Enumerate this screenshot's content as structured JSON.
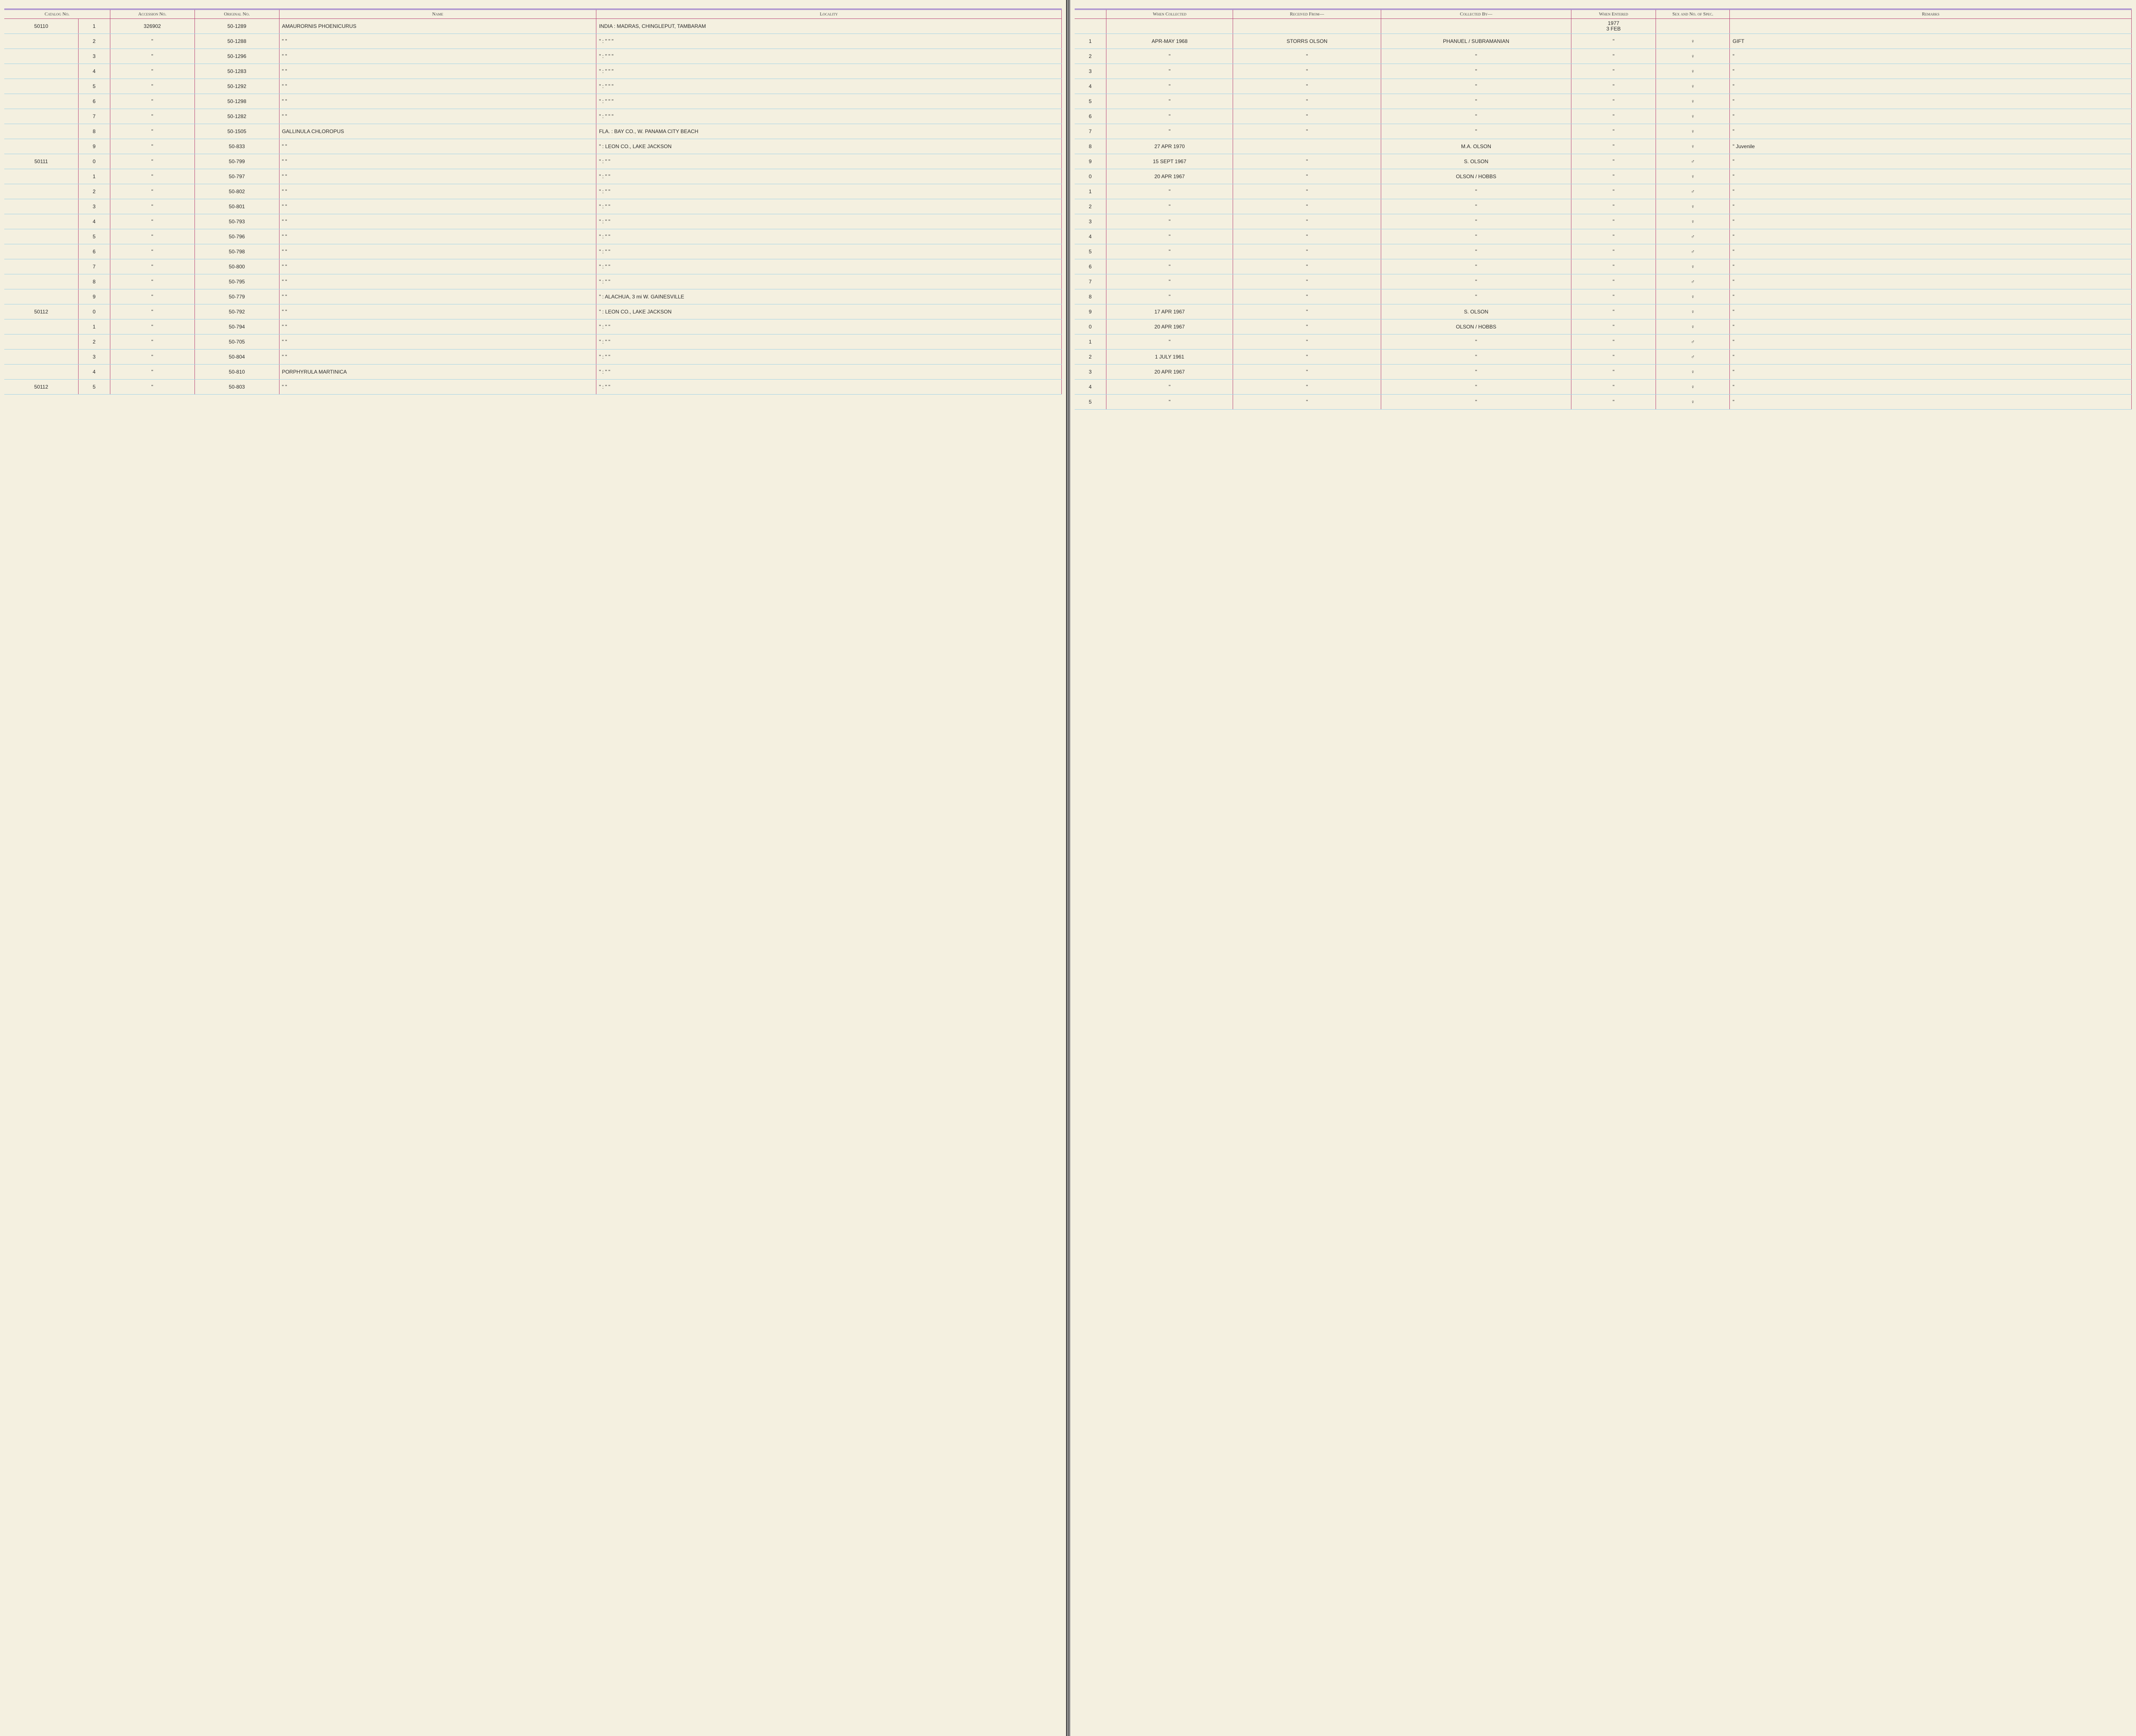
{
  "headers": {
    "left": [
      "Catalog No.",
      "Accession No.",
      "Original No.",
      "Name",
      "Locality"
    ],
    "right": [
      "",
      "When Collected",
      "Received From—",
      "Collected By—",
      "When Entered",
      "Sex and No. of Spec.",
      "Remarks"
    ]
  },
  "date_entered_header": {
    "year": "1977",
    "day": "3 FEB"
  },
  "colors": {
    "paper": "#f4f0e0",
    "rule_blue": "#a6d4e6",
    "rule_pink": "#b94a7a",
    "rule_purple": "#7a4fc4",
    "ink": "#2a2a2a",
    "printed_num": "#888"
  },
  "rows": [
    {
      "big": "50110",
      "sub": "1",
      "acc": "326902",
      "orig": "50-1289",
      "name": "AMAURORNIS PHOENICURUS",
      "loc": "INDIA : MADRAS, CHINGLEPUT, TAMBARAM",
      "r_sub": "1",
      "when": "APR-MAY 1968",
      "recv": "STORRS OLSON",
      "coll": "PHANUEL / SUBRAMANIAN",
      "ent": "\"",
      "sex": "♀",
      "rem": "GIFT"
    },
    {
      "big": "",
      "sub": "2",
      "acc": "\"",
      "orig": "50-1288",
      "name": "\"          \"",
      "loc": "\"   :   \"          \"          \"",
      "r_sub": "2",
      "when": "\"",
      "recv": "\"",
      "coll": "\"",
      "ent": "\"",
      "sex": "♀",
      "rem": "\""
    },
    {
      "big": "",
      "sub": "3",
      "acc": "\"",
      "orig": "50-1296",
      "name": "\"          \"",
      "loc": "\"   :   \"          \"          \"",
      "r_sub": "3",
      "when": "\"",
      "recv": "\"",
      "coll": "\"",
      "ent": "\"",
      "sex": "♀",
      "rem": "\""
    },
    {
      "big": "",
      "sub": "4",
      "acc": "\"",
      "orig": "50-1283",
      "name": "\"          \"",
      "loc": "\"   :   \"          \"          \"",
      "r_sub": "4",
      "when": "\"",
      "recv": "\"",
      "coll": "\"",
      "ent": "\"",
      "sex": "♀",
      "rem": "\""
    },
    {
      "big": "",
      "sub": "5",
      "acc": "\"",
      "orig": "50-1292",
      "name": "\"          \"",
      "loc": "\"   :   \"          \"          \"",
      "r_sub": "5",
      "when": "\"",
      "recv": "\"",
      "coll": "\"",
      "ent": "\"",
      "sex": "♀",
      "rem": "\""
    },
    {
      "big": "",
      "sub": "6",
      "acc": "\"",
      "orig": "50-1298",
      "name": "\"          \"",
      "loc": "\"   :   \"          \"          \"",
      "r_sub": "6",
      "when": "\"",
      "recv": "\"",
      "coll": "\"",
      "ent": "\"",
      "sex": "♀",
      "rem": "\""
    },
    {
      "big": "",
      "sub": "7",
      "acc": "\"",
      "orig": "50-1282",
      "name": "\"          \"",
      "loc": "\"   :   \"          \"          \"",
      "r_sub": "7",
      "when": "\"",
      "recv": "\"",
      "coll": "\"",
      "ent": "\"",
      "sex": "♀",
      "rem": "\""
    },
    {
      "big": "",
      "sub": "8",
      "acc": "\"",
      "orig": "50-1505",
      "name": "GALLINULA CHLOROPUS",
      "loc": "FLA. : BAY CO., W. PANAMA CITY BEACH",
      "r_sub": "8",
      "when": "27 APR 1970",
      "recv": "",
      "coll": "M.A. OLSON",
      "ent": "\"",
      "sex": "♀",
      "rem": "\"   Juvenile"
    },
    {
      "big": "",
      "sub": "9",
      "acc": "\"",
      "orig": "50-833",
      "name": "\"          \"",
      "loc": "\"   :  LEON CO., LAKE JACKSON",
      "r_sub": "9",
      "when": "15 SEPT 1967",
      "recv": "\"",
      "coll": "S. OLSON",
      "ent": "\"",
      "sex": "♂",
      "rem": "\""
    },
    {
      "big": "50111",
      "sub": "0",
      "acc": "\"",
      "orig": "50-799",
      "name": "\"          \"",
      "loc": "\"   :   \"          \"",
      "r_sub": "0",
      "when": "20 APR 1967",
      "recv": "\"",
      "coll": "OLSON / HOBBS",
      "ent": "\"",
      "sex": "♀",
      "rem": "\""
    },
    {
      "big": "",
      "sub": "1",
      "acc": "\"",
      "orig": "50-797",
      "name": "\"          \"",
      "loc": "\"   :   \"          \"",
      "r_sub": "1",
      "when": "\"",
      "recv": "\"",
      "coll": "\"",
      "ent": "\"",
      "sex": "♂",
      "rem": "\""
    },
    {
      "big": "",
      "sub": "2",
      "acc": "\"",
      "orig": "50-802",
      "name": "\"          \"",
      "loc": "\"   :   \"          \"",
      "r_sub": "2",
      "when": "\"",
      "recv": "\"",
      "coll": "\"",
      "ent": "\"",
      "sex": "♀",
      "rem": "\""
    },
    {
      "big": "",
      "sub": "3",
      "acc": "\"",
      "orig": "50-801",
      "name": "\"          \"",
      "loc": "\"   :   \"          \"",
      "r_sub": "3",
      "when": "\"",
      "recv": "\"",
      "coll": "\"",
      "ent": "\"",
      "sex": "♀",
      "rem": "\""
    },
    {
      "big": "",
      "sub": "4",
      "acc": "\"",
      "orig": "50-793",
      "name": "\"          \"",
      "loc": "\"   :   \"          \"",
      "r_sub": "4",
      "when": "\"",
      "recv": "\"",
      "coll": "\"",
      "ent": "\"",
      "sex": "♂",
      "rem": "\""
    },
    {
      "big": "",
      "sub": "5",
      "acc": "\"",
      "orig": "50-796",
      "name": "\"          \"",
      "loc": "\"   :   \"          \"",
      "r_sub": "5",
      "when": "\"",
      "recv": "\"",
      "coll": "\"",
      "ent": "\"",
      "sex": "♂",
      "rem": "\""
    },
    {
      "big": "",
      "sub": "6",
      "acc": "\"",
      "orig": "50-798",
      "name": "\"          \"",
      "loc": "\"   :   \"          \"",
      "r_sub": "6",
      "when": "\"",
      "recv": "\"",
      "coll": "\"",
      "ent": "\"",
      "sex": "♀",
      "rem": "\""
    },
    {
      "big": "",
      "sub": "7",
      "acc": "\"",
      "orig": "50-800",
      "name": "\"          \"",
      "loc": "\"   :   \"          \"",
      "r_sub": "7",
      "when": "\"",
      "recv": "\"",
      "coll": "\"",
      "ent": "\"",
      "sex": "♂",
      "rem": "\""
    },
    {
      "big": "",
      "sub": "8",
      "acc": "\"",
      "orig": "50-795",
      "name": "\"          \"",
      "loc": "\"   :   \"          \"",
      "r_sub": "8",
      "when": "\"",
      "recv": "\"",
      "coll": "\"",
      "ent": "\"",
      "sex": "♀",
      "rem": "\""
    },
    {
      "big": "",
      "sub": "9",
      "acc": "\"",
      "orig": "50-779",
      "name": "\"          \"",
      "loc": "\"   :  ALACHUA, 3 mi W. GAINESVILLE",
      "r_sub": "9",
      "when": "17 APR 1967",
      "recv": "\"",
      "coll": "S. OLSON",
      "ent": "\"",
      "sex": "♀",
      "rem": "\""
    },
    {
      "big": "50112",
      "sub": "0",
      "acc": "\"",
      "orig": "50-792",
      "name": "\"          \"",
      "loc": "\"   :  LEON CO., LAKE JACKSON",
      "r_sub": "0",
      "when": "20 APR 1967",
      "recv": "\"",
      "coll": "OLSON / HOBBS",
      "ent": "\"",
      "sex": "♀",
      "rem": "\""
    },
    {
      "big": "",
      "sub": "1",
      "acc": "\"",
      "orig": "50-794",
      "name": "\"          \"",
      "loc": "\"   :   \"          \"",
      "r_sub": "1",
      "when": "\"",
      "recv": "\"",
      "coll": "\"",
      "ent": "\"",
      "sex": "♂",
      "rem": "\""
    },
    {
      "big": "",
      "sub": "2",
      "acc": "\"",
      "orig": "50-705",
      "name": "\"          \"",
      "loc": "\"   :   \"          \"",
      "r_sub": "2",
      "when": "1 JULY 1961",
      "recv": "\"",
      "coll": "\"",
      "ent": "\"",
      "sex": "♂",
      "rem": "\""
    },
    {
      "big": "",
      "sub": "3",
      "acc": "\"",
      "orig": "50-804",
      "name": "\"          \"",
      "loc": "\"   :   \"          \"",
      "r_sub": "3",
      "when": "20 APR 1967",
      "recv": "\"",
      "coll": "\"",
      "ent": "\"",
      "sex": "♀",
      "rem": "\""
    },
    {
      "big": "",
      "sub": "4",
      "acc": "\"",
      "orig": "50-810",
      "name": "PORPHYRULA MARTINICA",
      "loc": "\"   :   \"          \"",
      "r_sub": "4",
      "when": "\"",
      "recv": "\"",
      "coll": "\"",
      "ent": "\"",
      "sex": "♀",
      "rem": "\""
    },
    {
      "big": "50112",
      "sub": "5",
      "acc": "\"",
      "orig": "50-803",
      "name": "\"          \"",
      "loc": "\"   :   \"          \"",
      "r_sub": "5",
      "when": "\"",
      "recv": "\"",
      "coll": "\"",
      "ent": "\"",
      "sex": "♀",
      "rem": "\""
    }
  ],
  "column_widths": {
    "left": {
      "big": "7%",
      "sub": "3%",
      "acc": "8%",
      "orig": "8%",
      "name": "30%",
      "loc": "44%"
    },
    "right": {
      "r_sub": "3%",
      "when": "12%",
      "recv": "14%",
      "coll": "18%",
      "ent": "8%",
      "sex": "7%",
      "rem": "38%"
    }
  }
}
